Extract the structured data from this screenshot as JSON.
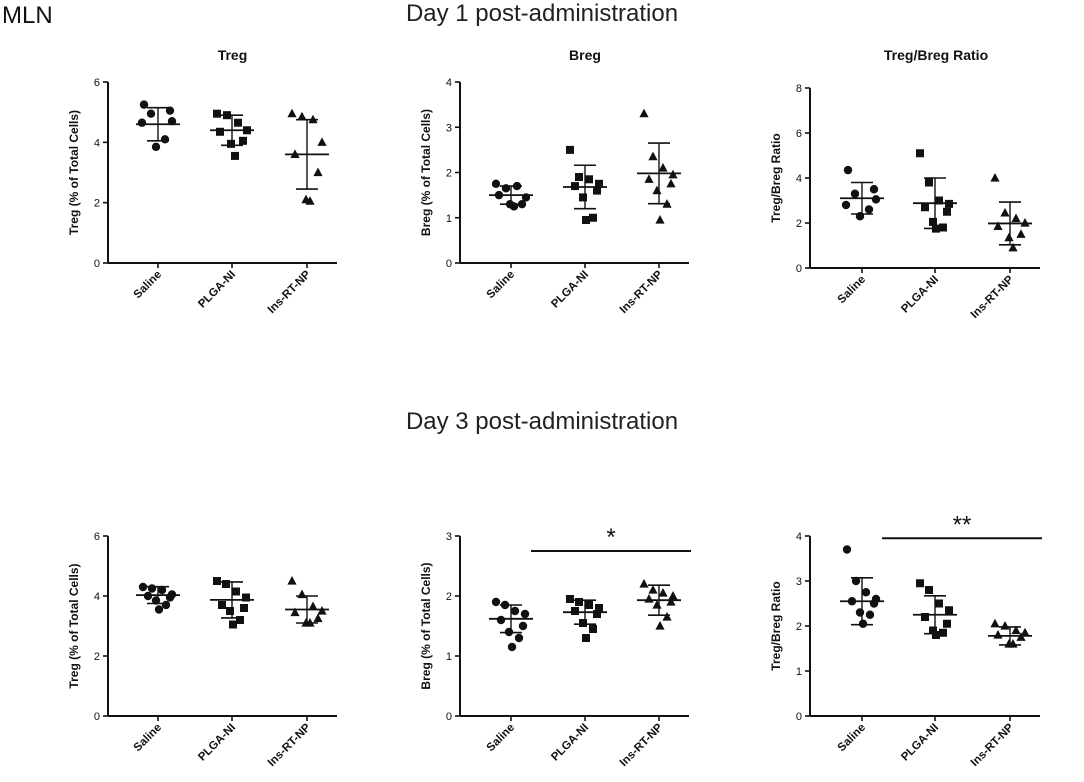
{
  "figure": {
    "corner_label": "MLN",
    "day1_heading": "Day 1 post-administration",
    "day3_heading": "Day 3 post-administration"
  },
  "chart_data": [
    {
      "id": "d1-treg",
      "type": "scatter",
      "title": "Treg",
      "ylabel": "Treg (% of Total Cells)",
      "categories": [
        "Saline",
        "PLGA-NI",
        "Ins-RT-NP"
      ],
      "ylim": [
        0,
        6
      ],
      "yticks": [
        0,
        2,
        4,
        6
      ],
      "markers": [
        "circle",
        "square",
        "triangle"
      ],
      "points": [
        [
          5.25,
          5.05,
          4.95,
          4.7,
          4.65,
          4.1,
          3.85
        ],
        [
          4.95,
          4.9,
          4.65,
          4.4,
          4.35,
          4.05,
          3.95,
          3.55
        ],
        [
          4.95,
          4.85,
          4.75,
          4.0,
          3.6,
          3.0,
          2.1,
          2.05
        ]
      ],
      "mean": [
        4.6,
        4.4,
        3.6
      ],
      "sd": [
        0.55,
        0.5,
        1.15
      ],
      "significance": null
    },
    {
      "id": "d1-breg",
      "type": "scatter",
      "title": "Breg",
      "ylabel": "Breg (% of Total Cells)",
      "categories": [
        "Saline",
        "PLGA-NI",
        "Ins-RT-NP"
      ],
      "ylim": [
        0,
        4
      ],
      "yticks": [
        0,
        1,
        2,
        3,
        4
      ],
      "markers": [
        "circle",
        "square",
        "triangle"
      ],
      "points": [
        [
          1.75,
          1.65,
          1.7,
          1.45,
          1.5,
          1.3,
          1.3,
          1.25
        ],
        [
          2.5,
          1.9,
          1.85,
          1.75,
          1.7,
          1.6,
          1.45,
          1.0,
          0.95
        ],
        [
          3.3,
          2.35,
          2.1,
          1.95,
          1.85,
          1.75,
          1.6,
          1.3,
          0.95
        ]
      ],
      "mean": [
        1.5,
        1.68,
        1.98
      ],
      "sd": [
        0.2,
        0.48,
        0.67
      ],
      "significance": null
    },
    {
      "id": "d1-ratio",
      "type": "scatter",
      "title": "Treg/Breg Ratio",
      "ylabel": "Treg/Breg Ratio",
      "categories": [
        "Saline",
        "PLGA-NI",
        "Ins-RT-NP"
      ],
      "ylim": [
        0,
        8
      ],
      "yticks": [
        0,
        2,
        4,
        6,
        8
      ],
      "markers": [
        "circle",
        "square",
        "triangle"
      ],
      "points": [
        [
          4.35,
          3.5,
          3.3,
          3.05,
          2.8,
          2.6,
          2.3
        ],
        [
          5.1,
          3.8,
          3.0,
          2.85,
          2.7,
          2.5,
          2.05,
          1.8,
          1.75
        ],
        [
          4.0,
          2.45,
          2.2,
          2.0,
          1.85,
          1.5,
          1.35,
          0.9
        ]
      ],
      "mean": [
        3.1,
        2.88,
        1.98
      ],
      "sd": [
        0.7,
        1.12,
        0.95
      ],
      "significance": null
    },
    {
      "id": "d3-treg",
      "type": "scatter",
      "title": "",
      "ylabel": "Treg (% of Total Cells)",
      "categories": [
        "Saline",
        "PLGA-NI",
        "Ins-RT-NP"
      ],
      "ylim": [
        0,
        6
      ],
      "yticks": [
        0,
        2,
        4,
        6
      ],
      "markers": [
        "circle",
        "square",
        "triangle"
      ],
      "points": [
        [
          4.3,
          4.25,
          4.2,
          4.05,
          4.0,
          3.95,
          3.85,
          3.7,
          3.55
        ],
        [
          4.5,
          4.4,
          4.15,
          3.95,
          3.7,
          3.6,
          3.5,
          3.2,
          3.05
        ],
        [
          4.5,
          4.05,
          3.65,
          3.5,
          3.45,
          3.25,
          3.1,
          3.1
        ]
      ],
      "mean": [
        4.03,
        3.87,
        3.55
      ],
      "sd": [
        0.28,
        0.6,
        0.45
      ],
      "significance": null
    },
    {
      "id": "d3-breg",
      "type": "scatter",
      "title": "",
      "ylabel": "Breg (% of Total Cells)",
      "categories": [
        "Saline",
        "PLGA-NI",
        "Ins-RT-NP"
      ],
      "ylim": [
        0,
        3
      ],
      "yticks": [
        0,
        1,
        2,
        3
      ],
      "markers": [
        "circle",
        "square",
        "triangle"
      ],
      "points": [
        [
          1.9,
          1.85,
          1.75,
          1.7,
          1.6,
          1.5,
          1.4,
          1.3,
          1.15
        ],
        [
          1.95,
          1.9,
          1.85,
          1.8,
          1.75,
          1.7,
          1.55,
          1.45,
          1.3
        ],
        [
          2.2,
          2.1,
          2.05,
          2.0,
          1.95,
          1.9,
          1.85,
          1.65,
          1.5
        ]
      ],
      "mean": [
        1.62,
        1.73,
        1.93
      ],
      "sd": [
        0.23,
        0.2,
        0.25
      ],
      "significance": {
        "from": 0,
        "to": 2,
        "label": "*",
        "level": 2.75
      }
    },
    {
      "id": "d3-ratio",
      "type": "scatter",
      "title": "",
      "ylabel": "Treg/Breg Ratio",
      "categories": [
        "Saline",
        "PLGA-NI",
        "Ins-RT-NP"
      ],
      "ylim": [
        0,
        4
      ],
      "yticks": [
        0,
        1,
        2,
        3,
        4
      ],
      "markers": [
        "circle",
        "square",
        "triangle"
      ],
      "points": [
        [
          3.7,
          3.0,
          2.75,
          2.6,
          2.55,
          2.5,
          2.3,
          2.25,
          2.05
        ],
        [
          2.95,
          2.8,
          2.5,
          2.35,
          2.2,
          2.05,
          1.9,
          1.85,
          1.8
        ],
        [
          2.05,
          2.0,
          1.9,
          1.85,
          1.8,
          1.75,
          1.6,
          1.6
        ]
      ],
      "mean": [
        2.55,
        2.25,
        1.78
      ],
      "sd": [
        0.52,
        0.42,
        0.2
      ],
      "significance": {
        "from": 0,
        "to": 2,
        "label": "**",
        "level": 3.95
      }
    }
  ]
}
